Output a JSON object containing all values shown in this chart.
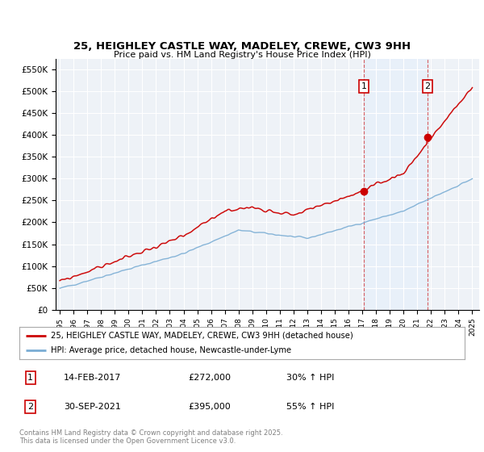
{
  "title_line1": "25, HEIGHLEY CASTLE WAY, MADELEY, CREWE, CW3 9HH",
  "title_line2": "Price paid vs. HM Land Registry's House Price Index (HPI)",
  "ylabel_ticks": [
    "£0",
    "£50K",
    "£100K",
    "£150K",
    "£200K",
    "£250K",
    "£300K",
    "£350K",
    "£400K",
    "£450K",
    "£500K",
    "£550K"
  ],
  "ylabel_values": [
    0,
    50000,
    100000,
    150000,
    200000,
    250000,
    300000,
    350000,
    400000,
    450000,
    500000,
    550000
  ],
  "ylim": [
    0,
    575000
  ],
  "t1_year": 2017.12,
  "t1_price": 272000,
  "t2_year": 2021.75,
  "t2_price": 395000,
  "legend_line1": "25, HEIGHLEY CASTLE WAY, MADELEY, CREWE, CW3 9HH (detached house)",
  "legend_line2": "HPI: Average price, detached house, Newcastle-under-Lyme",
  "footer": "Contains HM Land Registry data © Crown copyright and database right 2025.\nThis data is licensed under the Open Government Licence v3.0.",
  "red_color": "#cc0000",
  "blue_color": "#7aadd4",
  "shade_color": "#ddeeff",
  "background_color": "#eef2f7",
  "grid_color": "#ffffff",
  "annotation_color": "#cc0000"
}
